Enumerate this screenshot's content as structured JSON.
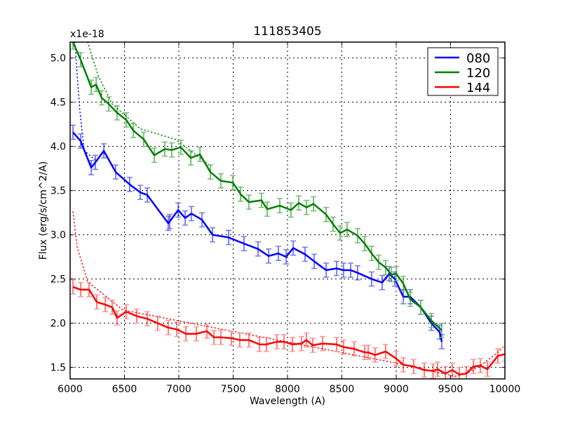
{
  "chart_data": {
    "type": "line",
    "title": "111853405",
    "xlabel": "Wavelength (A)",
    "ylabel": "Flux (erg/s/cm^2/A)",
    "y_offset_label": "x1e-18",
    "xlim": [
      6000,
      10000
    ],
    "ylim": [
      1.37,
      5.18
    ],
    "xticks": [
      6000,
      6500,
      7000,
      7500,
      8000,
      8500,
      9000,
      9500,
      10000
    ],
    "xtick_labels": [
      "6000",
      "6500",
      "7000",
      "7500",
      "8000",
      "8500",
      "9000",
      "9500",
      "10000"
    ],
    "yticks": [
      1.5,
      2.0,
      2.5,
      3.0,
      3.5,
      4.0,
      4.5,
      5.0
    ],
    "ytick_labels": [
      "1.5",
      "2.0",
      "2.5",
      "3.0",
      "3.5",
      "4.0",
      "4.5",
      "5.0"
    ],
    "grid": true,
    "legend_position": "upper right",
    "series": [
      {
        "name": "080",
        "color": "#0000ff",
        "errcolor": "#7777ee",
        "x": [
          6026,
          6097,
          6194,
          6232,
          6310,
          6419,
          6548,
          6645,
          6710,
          6903,
          6916,
          6994,
          7058,
          7116,
          7213,
          7310,
          7458,
          7600,
          7729,
          7826,
          7916,
          7987,
          8052,
          8161,
          8245,
          8355,
          8452,
          8516,
          8581,
          8645,
          8774,
          8871,
          8935,
          8987,
          9065,
          9129,
          9226,
          9323,
          9400,
          9419
        ],
        "y": [
          4.16,
          4.06,
          3.76,
          3.82,
          3.95,
          3.71,
          3.57,
          3.48,
          3.45,
          3.13,
          3.15,
          3.28,
          3.19,
          3.24,
          3.17,
          3.0,
          2.97,
          2.9,
          2.84,
          2.76,
          2.79,
          2.75,
          2.85,
          2.78,
          2.7,
          2.6,
          2.62,
          2.6,
          2.6,
          2.57,
          2.5,
          2.46,
          2.56,
          2.5,
          2.3,
          2.3,
          2.18,
          2.0,
          1.9,
          1.79
        ],
        "err": 0.08,
        "model_x": [
          6045,
          6065,
          6090,
          6129,
          6161,
          6226
        ],
        "model_y": [
          5.18,
          4.8,
          4.4,
          3.95,
          3.92,
          3.85
        ]
      },
      {
        "name": "120",
        "color": "#008000",
        "errcolor": "#77bb77",
        "x": [
          6026,
          6097,
          6194,
          6239,
          6290,
          6355,
          6432,
          6516,
          6581,
          6677,
          6774,
          6871,
          6935,
          7019,
          7110,
          7194,
          7290,
          7387,
          7497,
          7568,
          7645,
          7761,
          7813,
          7929,
          8032,
          8103,
          8174,
          8239,
          8355,
          8419,
          8484,
          8548,
          8645,
          8710,
          8774,
          8839,
          8903,
          8955,
          9000,
          9065,
          9129,
          9226,
          9323,
          9419
        ],
        "y": [
          5.18,
          4.98,
          4.67,
          4.7,
          4.55,
          4.48,
          4.38,
          4.3,
          4.18,
          4.08,
          3.9,
          3.97,
          3.96,
          3.99,
          3.87,
          3.91,
          3.71,
          3.61,
          3.59,
          3.46,
          3.37,
          3.39,
          3.29,
          3.33,
          3.28,
          3.36,
          3.31,
          3.35,
          3.23,
          3.12,
          3.02,
          3.06,
          2.99,
          2.9,
          2.79,
          2.69,
          2.63,
          2.55,
          2.56,
          2.45,
          2.27,
          2.18,
          2.03,
          1.92
        ],
        "err": 0.08,
        "model_x": [
          6161,
          6258,
          6387,
          6645,
          6968,
          7290
        ],
        "model_y": [
          5.18,
          4.8,
          4.48,
          4.2,
          4.08,
          3.78
        ]
      },
      {
        "name": "144",
        "color": "#ff0000",
        "errcolor": "#ff9999",
        "x": [
          6026,
          6097,
          6174,
          6245,
          6323,
          6387,
          6432,
          6516,
          6613,
          6710,
          6806,
          6903,
          6981,
          7065,
          7161,
          7258,
          7323,
          7387,
          7484,
          7561,
          7645,
          7742,
          7806,
          7903,
          7968,
          8045,
          8129,
          8174,
          8232,
          8323,
          8452,
          8516,
          8613,
          8710,
          8742,
          8806,
          8903,
          9000,
          9065,
          9161,
          9258,
          9339,
          9381,
          9452,
          9516,
          9581,
          9645,
          9710,
          9774,
          9839,
          9935,
          10000
        ],
        "y": [
          2.41,
          2.38,
          2.38,
          2.24,
          2.21,
          2.18,
          2.06,
          2.13,
          2.08,
          2.05,
          2.0,
          1.95,
          1.93,
          1.88,
          1.88,
          1.91,
          1.84,
          1.84,
          1.83,
          1.81,
          1.81,
          1.76,
          1.76,
          1.79,
          1.79,
          1.76,
          1.77,
          1.81,
          1.75,
          1.77,
          1.76,
          1.73,
          1.71,
          1.67,
          1.67,
          1.64,
          1.68,
          1.6,
          1.53,
          1.51,
          1.47,
          1.46,
          1.48,
          1.43,
          1.47,
          1.42,
          1.43,
          1.51,
          1.52,
          1.48,
          1.63,
          1.65
        ],
        "err": 0.08,
        "model_x": [
          6026,
          6065,
          6161,
          6323,
          6484,
          9161,
          9387,
          9548,
          9677,
          9806,
          9935,
          9990
        ],
        "model_y": [
          3.26,
          2.86,
          2.47,
          2.31,
          2.15,
          1.51,
          1.44,
          1.4,
          1.45,
          1.55,
          1.67,
          1.74
        ]
      }
    ]
  }
}
